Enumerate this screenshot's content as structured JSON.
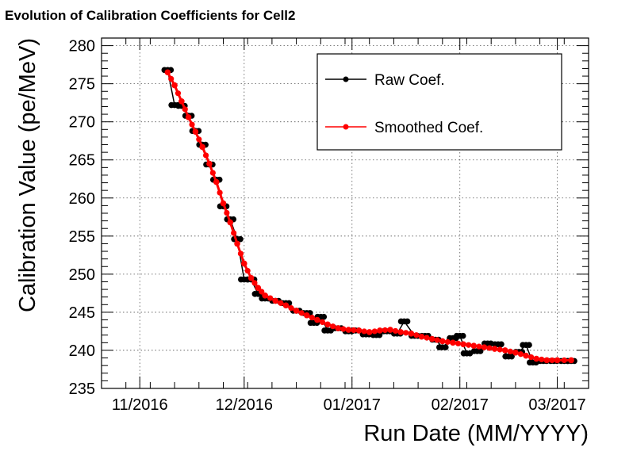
{
  "chart_data": {
    "type": "line",
    "title": "Evolution of Calibration Coefficients for Cell2",
    "xlabel": "Run Date (MM/YYYY)",
    "ylabel": "Calibration Value (pe/MeV)",
    "xlim": [
      "2016-10-21",
      "2017-03-10"
    ],
    "ylim": [
      235,
      281
    ],
    "xticks": [
      "11/2016",
      "12/2016",
      "01/2017",
      "02/2017",
      "03/2017"
    ],
    "yticks": [
      235,
      240,
      245,
      250,
      255,
      260,
      265,
      270,
      275,
      280
    ],
    "grid": true,
    "legend_position": "top-right",
    "series": [
      {
        "name": "Raw Coef.",
        "color": "#000000",
        "marker": "circle",
        "points": [
          [
            "2016-11-09",
            276.8
          ],
          [
            "2016-11-11",
            272.2
          ],
          [
            "2016-11-13",
            272.1
          ],
          [
            "2016-11-15",
            270.8
          ],
          [
            "2016-11-17",
            268.8
          ],
          [
            "2016-11-19",
            267.0
          ],
          [
            "2016-11-21",
            264.4
          ],
          [
            "2016-11-23",
            262.4
          ],
          [
            "2016-11-25",
            258.9
          ],
          [
            "2016-11-27",
            257.2
          ],
          [
            "2016-11-29",
            254.6
          ],
          [
            "2016-12-01",
            249.3
          ],
          [
            "2016-12-03",
            249.3
          ],
          [
            "2016-12-05",
            247.4
          ],
          [
            "2016-12-07",
            246.8
          ],
          [
            "2016-12-10",
            246.5
          ],
          [
            "2016-12-13",
            246.2
          ],
          [
            "2016-12-16",
            245.2
          ],
          [
            "2016-12-19",
            244.9
          ],
          [
            "2016-12-21",
            243.6
          ],
          [
            "2016-12-23",
            244.4
          ],
          [
            "2016-12-25",
            242.6
          ],
          [
            "2016-12-28",
            242.9
          ],
          [
            "2016-12-31",
            242.5
          ],
          [
            "2017-01-02",
            242.6
          ],
          [
            "2017-01-05",
            242.1
          ],
          [
            "2017-01-08",
            242.0
          ],
          [
            "2017-01-11",
            242.5
          ],
          [
            "2017-01-14",
            242.2
          ],
          [
            "2017-01-16",
            243.8
          ],
          [
            "2017-01-19",
            241.9
          ],
          [
            "2017-01-22",
            241.9
          ],
          [
            "2017-01-25",
            241.4
          ],
          [
            "2017-01-27",
            240.4
          ],
          [
            "2017-01-30",
            241.6
          ],
          [
            "2017-02-01",
            241.9
          ],
          [
            "2017-02-03",
            239.6
          ],
          [
            "2017-02-06",
            239.9
          ],
          [
            "2017-02-09",
            240.9
          ],
          [
            "2017-02-12",
            240.8
          ],
          [
            "2017-02-15",
            239.2
          ],
          [
            "2017-02-18",
            239.8
          ],
          [
            "2017-02-20",
            240.7
          ],
          [
            "2017-02-22",
            238.4
          ],
          [
            "2017-02-25",
            238.6
          ],
          [
            "2017-02-28",
            238.6
          ],
          [
            "2017-03-03",
            238.6
          ],
          [
            "2017-03-05",
            238.6
          ]
        ]
      },
      {
        "name": "Smoothed Coef.",
        "color": "#ff0000",
        "marker": "circle",
        "points": [
          [
            "2016-11-09",
            276.5
          ],
          [
            "2016-11-11",
            274.8
          ],
          [
            "2016-11-13",
            272.7
          ],
          [
            "2016-11-15",
            270.6
          ],
          [
            "2016-11-17",
            268.7
          ],
          [
            "2016-11-19",
            266.7
          ],
          [
            "2016-11-21",
            264.5
          ],
          [
            "2016-11-23",
            262.1
          ],
          [
            "2016-11-25",
            259.3
          ],
          [
            "2016-11-27",
            256.8
          ],
          [
            "2016-11-29",
            254.0
          ],
          [
            "2016-12-01",
            251.4
          ],
          [
            "2016-12-03",
            249.5
          ],
          [
            "2016-12-05",
            248.2
          ],
          [
            "2016-12-07",
            247.2
          ],
          [
            "2016-12-10",
            246.5
          ],
          [
            "2016-12-13",
            245.9
          ],
          [
            "2016-12-16",
            245.2
          ],
          [
            "2016-12-19",
            244.6
          ],
          [
            "2016-12-22",
            244.0
          ],
          [
            "2016-12-25",
            243.4
          ],
          [
            "2016-12-28",
            242.9
          ],
          [
            "2016-12-31",
            242.7
          ],
          [
            "2017-01-03",
            242.6
          ],
          [
            "2017-01-06",
            242.4
          ],
          [
            "2017-01-09",
            242.6
          ],
          [
            "2017-01-12",
            242.7
          ],
          [
            "2017-01-15",
            242.4
          ],
          [
            "2017-01-18",
            242.2
          ],
          [
            "2017-01-21",
            241.8
          ],
          [
            "2017-01-24",
            241.5
          ],
          [
            "2017-01-27",
            241.2
          ],
          [
            "2017-01-30",
            241.0
          ],
          [
            "2017-02-02",
            240.8
          ],
          [
            "2017-02-05",
            240.6
          ],
          [
            "2017-02-08",
            240.4
          ],
          [
            "2017-02-11",
            240.2
          ],
          [
            "2017-02-14",
            240.0
          ],
          [
            "2017-02-17",
            239.7
          ],
          [
            "2017-02-20",
            239.3
          ],
          [
            "2017-02-23",
            238.9
          ],
          [
            "2017-02-26",
            238.7
          ],
          [
            "2017-03-01",
            238.7
          ],
          [
            "2017-03-05",
            238.7
          ]
        ]
      }
    ]
  }
}
